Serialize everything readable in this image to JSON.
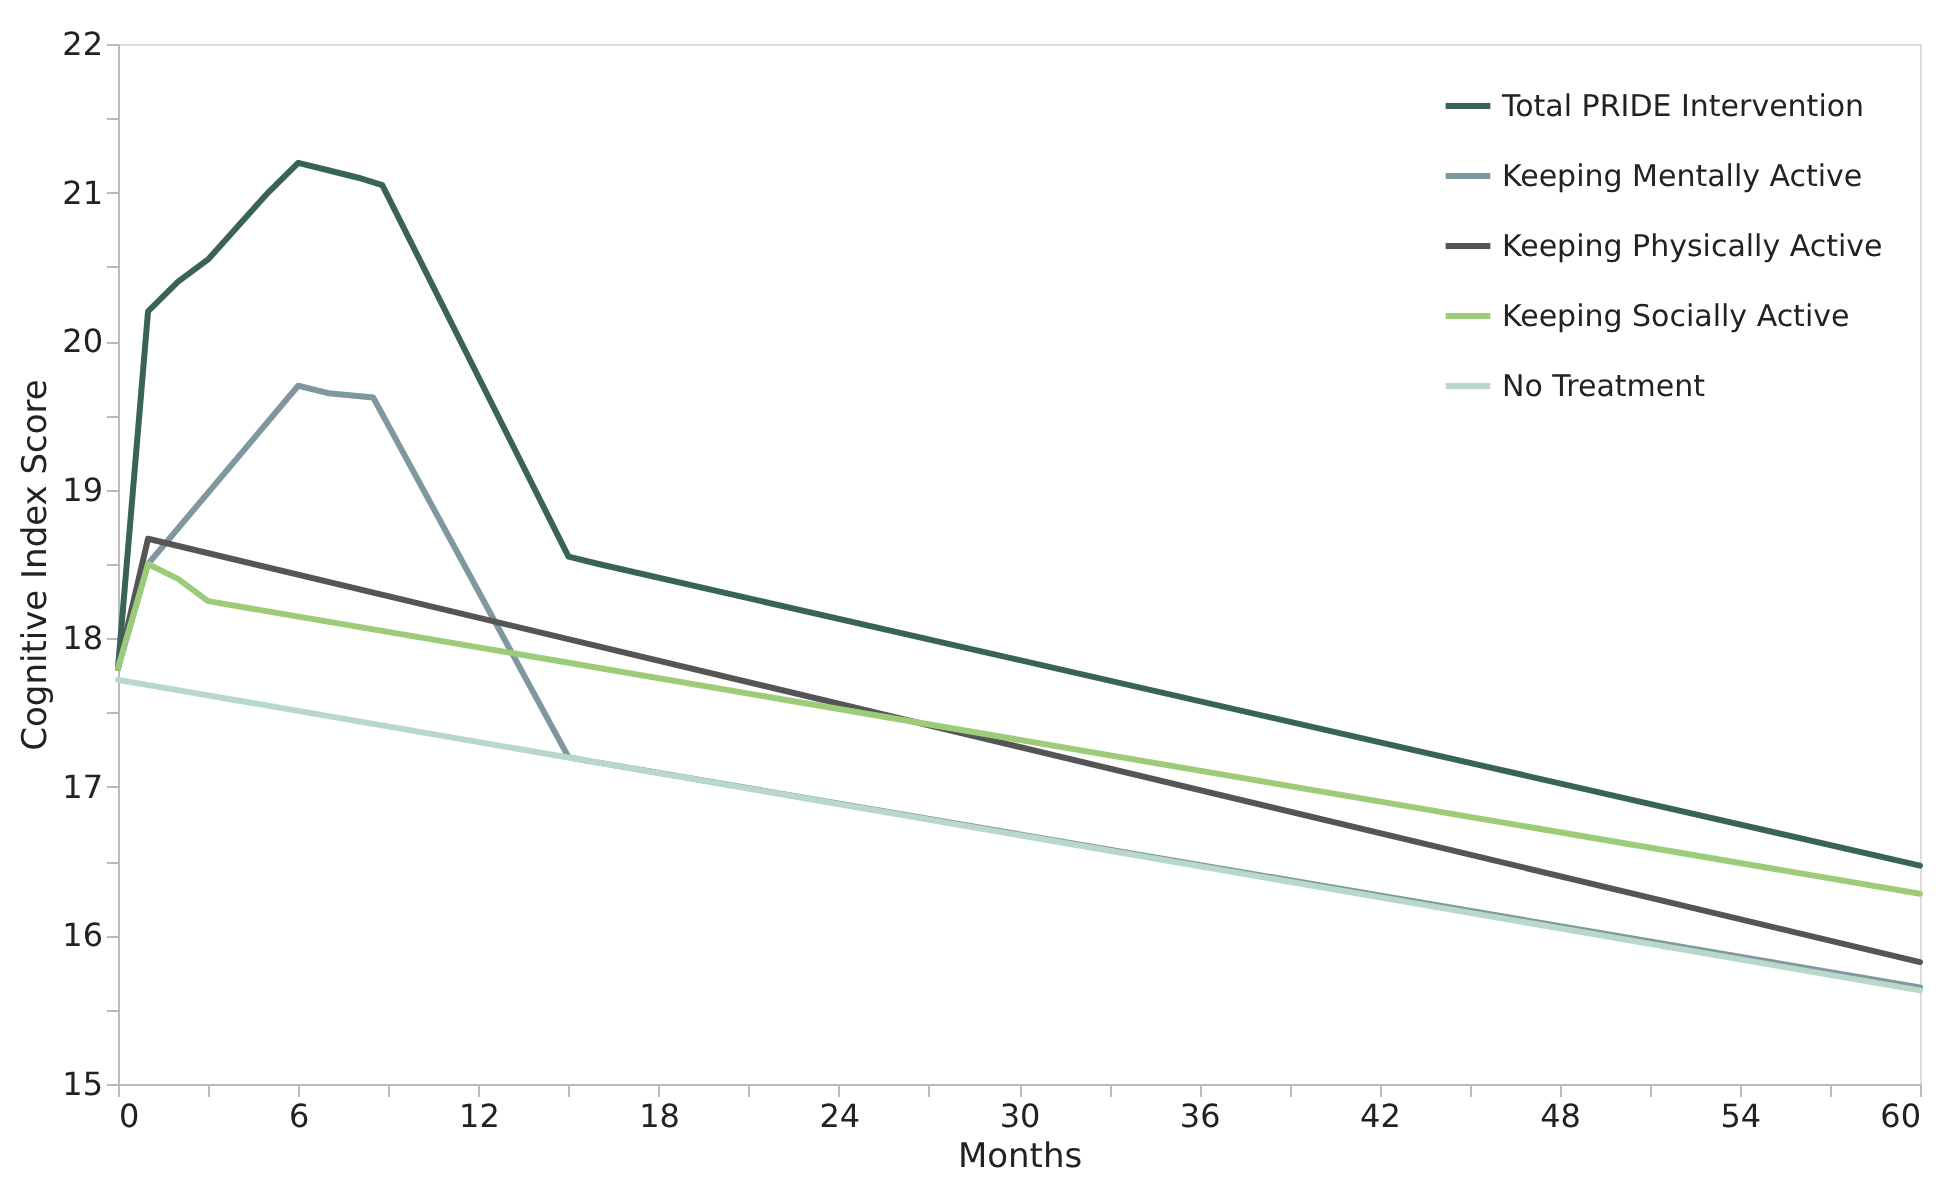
{
  "chart_data": {
    "type": "line",
    "xlabel": "Months",
    "ylabel": "Cognitive Index Score",
    "xlim": [
      0,
      60
    ],
    "ylim": [
      15,
      22
    ],
    "xticks": [
      0,
      {
        "value": 3,
        "label": null
      },
      6,
      {
        "value": 9,
        "label": null
      },
      12,
      {
        "value": 15,
        "label": null
      },
      18,
      {
        "value": 21,
        "label": null
      },
      24,
      {
        "value": 27,
        "label": null
      },
      30,
      {
        "value": 33,
        "label": null
      },
      36,
      {
        "value": 39,
        "label": null
      },
      42,
      {
        "value": 45,
        "label": null
      },
      48,
      {
        "value": 51,
        "label": null
      },
      54,
      {
        "value": 57,
        "label": null
      },
      60
    ],
    "yticks": [
      15,
      {
        "value": 15.5,
        "label": null
      },
      16,
      {
        "value": 16.5,
        "label": null
      },
      17,
      {
        "value": 17.5,
        "label": null
      },
      18,
      {
        "value": 18.5,
        "label": null
      },
      19,
      {
        "value": 19.5,
        "label": null
      },
      20,
      {
        "value": 20.5,
        "label": null
      },
      21,
      {
        "value": 21.5,
        "label": null
      },
      22
    ],
    "grid": false,
    "legend": "top right",
    "marker": "none",
    "line_style": "solid",
    "series": [
      {
        "name": "Total PRIDE Intervention",
        "color": "#3a6358",
        "x": [
          0,
          1,
          2,
          3,
          5,
          6,
          7,
          8,
          8.8,
          15,
          16,
          60
        ],
        "values": [
          17.8,
          20.2,
          20.4,
          20.55,
          21.0,
          21.2,
          21.15,
          21.1,
          21.05,
          18.55,
          18.5,
          16.47
        ]
      },
      {
        "name": "Keeping Mentally Active",
        "color": "#7f98a0",
        "x": [
          0,
          1,
          6,
          7,
          8.5,
          15,
          15.5,
          60
        ],
        "values": [
          17.8,
          18.5,
          19.7,
          19.65,
          19.62,
          17.2,
          17.18,
          15.65
        ]
      },
      {
        "name": "Keeping Physically Active",
        "color": "#555555",
        "x": [
          0,
          1,
          60
        ],
        "values": [
          17.8,
          18.67,
          15.82
        ]
      },
      {
        "name": "Keeping Socially Active",
        "color": "#9ccc7a",
        "x": [
          0,
          1,
          2,
          3,
          60
        ],
        "values": [
          17.8,
          18.5,
          18.4,
          18.25,
          16.28
        ]
      },
      {
        "name": "No Treatment",
        "color": "#b8d8cc",
        "x": [
          0,
          60
        ],
        "values": [
          17.72,
          15.63
        ]
      }
    ]
  }
}
